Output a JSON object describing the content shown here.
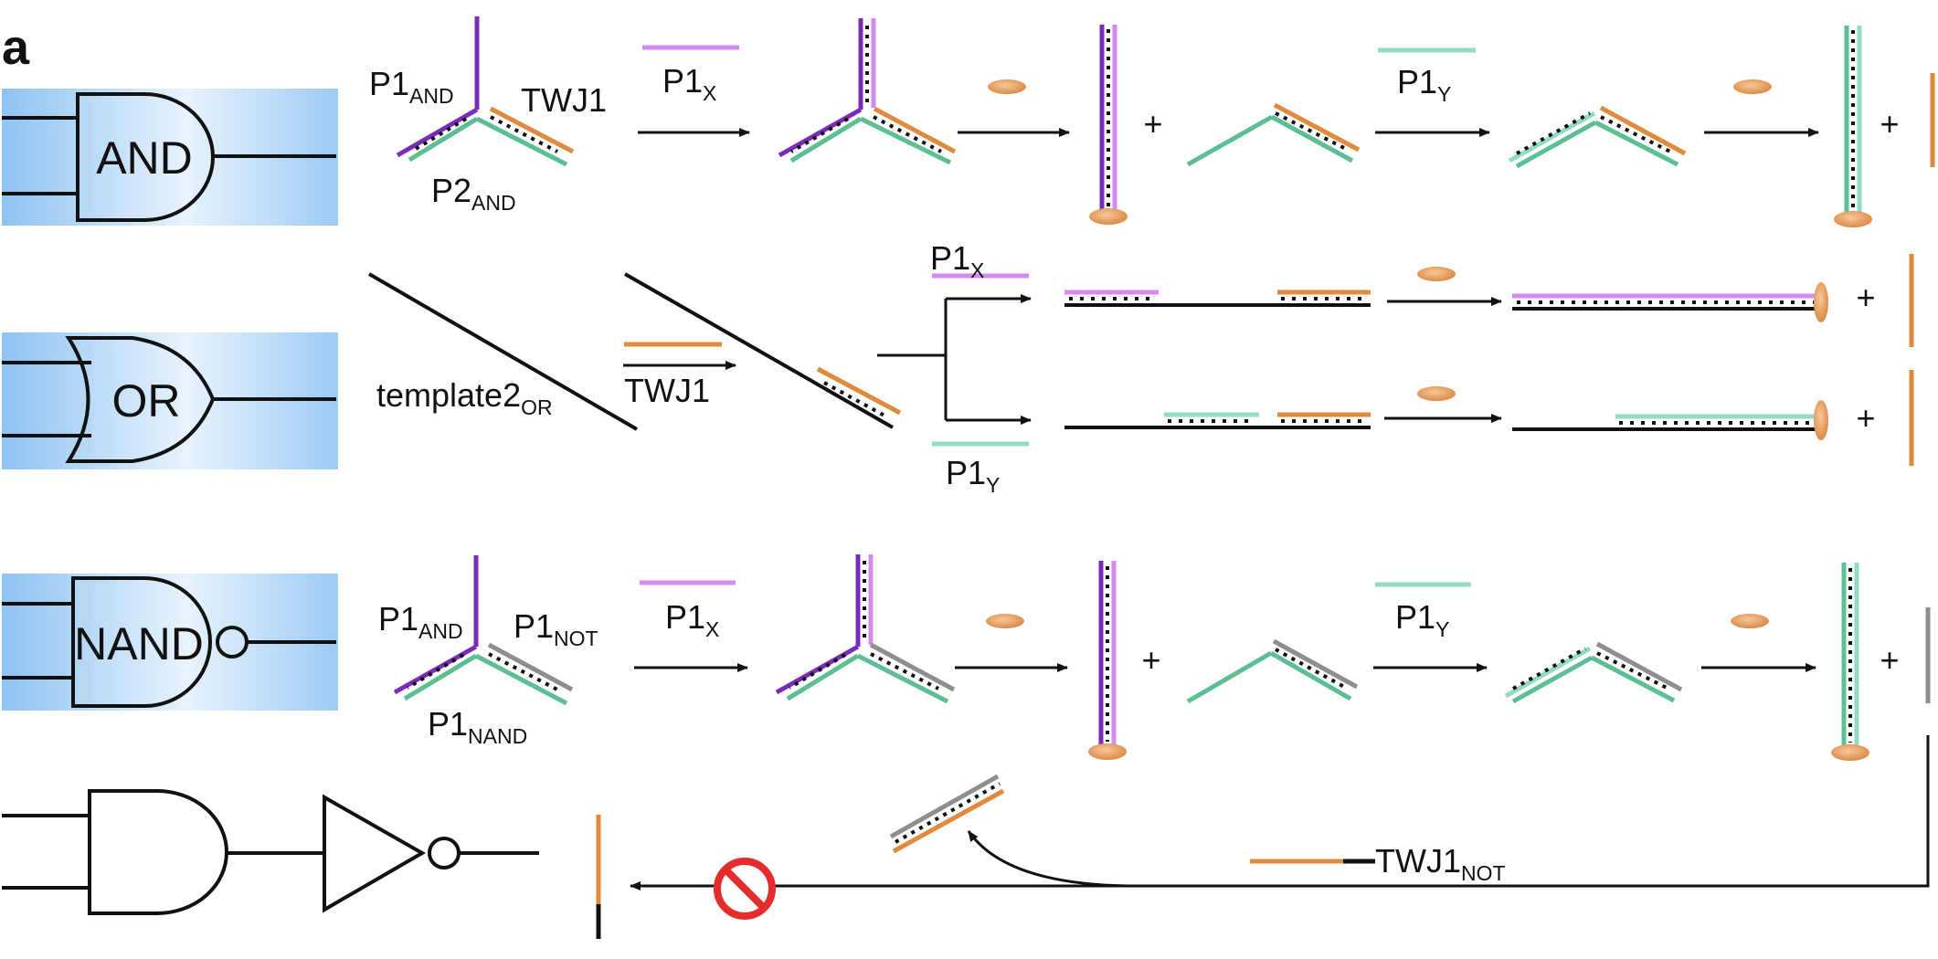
{
  "panel_letter": "a",
  "colors": {
    "purple": "#7B2BB8",
    "light_purple": "#D58AF0",
    "green": "#5CBF93",
    "light_green": "#8FDCC0",
    "orange": "#E08A3C",
    "gray": "#8E8E8E",
    "black": "#111111",
    "enzyme": "#E59A55",
    "blue_start": "#8EC3F2",
    "blocked_red": "#E52B2B"
  },
  "gates": [
    {
      "id": "and",
      "label": "AND"
    },
    {
      "id": "or",
      "label": "OR"
    },
    {
      "id": "nand",
      "label": "NAND"
    }
  ],
  "and_row": {
    "p1and_main": "P1",
    "p1and_sub": "AND",
    "twj1": "TWJ1",
    "p2and_main": "P2",
    "p2and_sub": "AND",
    "p1x_main": "P1",
    "p1x_sub": "X",
    "p1y_main": "P1",
    "p1y_sub": "Y",
    "plus": "+"
  },
  "or_row": {
    "template_main": "template2",
    "template_sub": "OR",
    "twj1": "TWJ1",
    "p1x_main": "P1",
    "p1x_sub": "X",
    "p1y_main": "P1",
    "p1y_sub": "Y",
    "plus": "+"
  },
  "nand_row": {
    "p1and_main": "P1",
    "p1and_sub": "AND",
    "p1not_main": "P1",
    "p1not_sub": "NOT",
    "p1nand_main": "P1",
    "p1nand_sub": "NAND",
    "p1x_main": "P1",
    "p1x_sub": "X",
    "p1y_main": "P1",
    "p1y_sub": "Y",
    "plus": "+",
    "twj1not_main": "TWJ1",
    "twj1not_sub": "NOT"
  }
}
